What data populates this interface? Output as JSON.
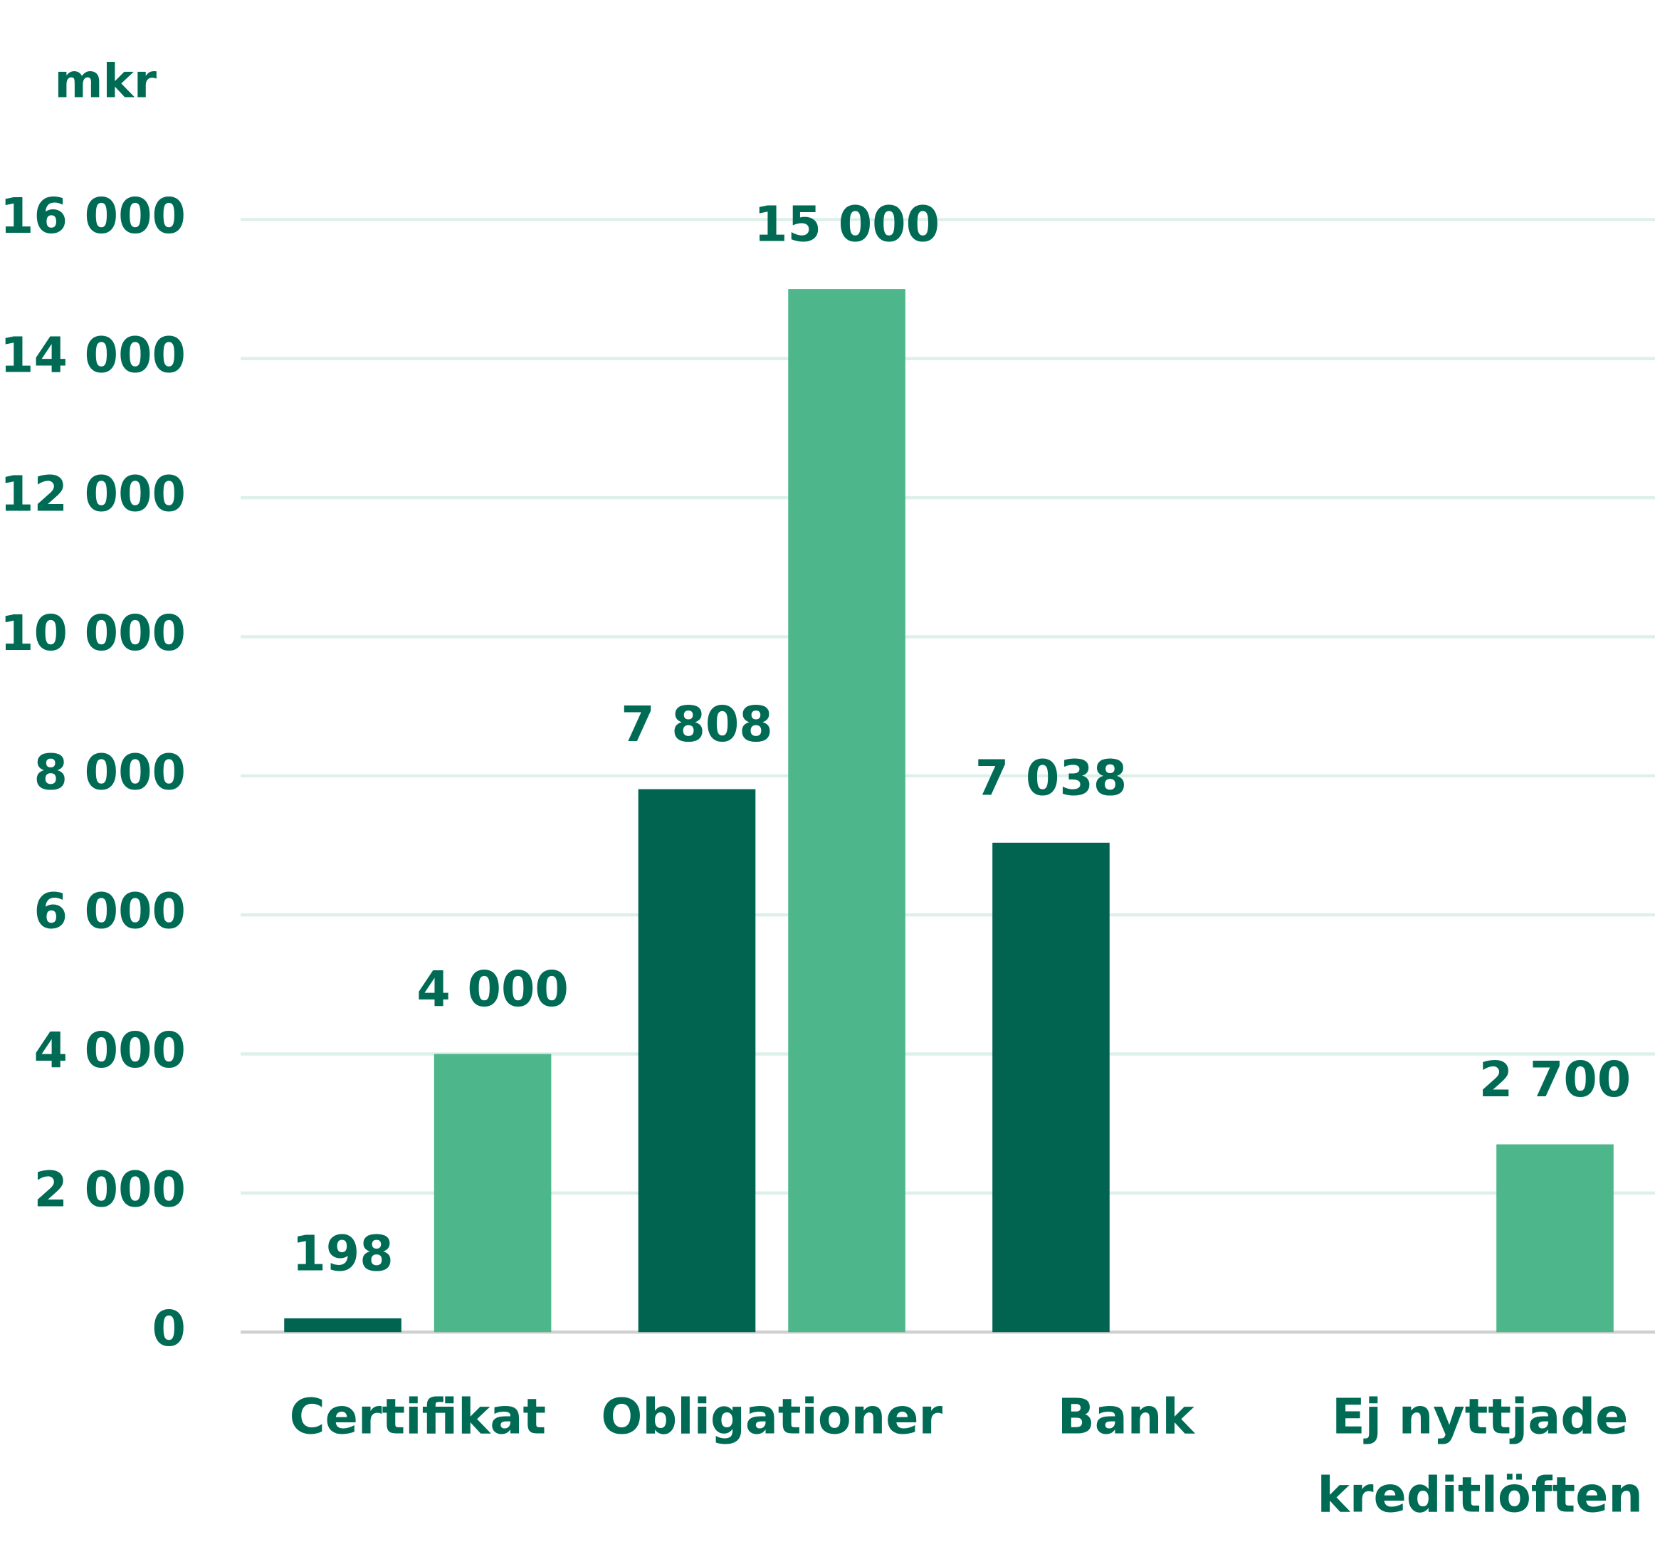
{
  "chart_data": {
    "type": "bar",
    "y_axis_label": "mkr",
    "categories": [
      "Certifikat",
      "Obligationer",
      "Bank",
      "Ej nyttjade kreditlöften"
    ],
    "series": [
      {
        "color": "#006451",
        "values": [
          198,
          7808,
          7038,
          null
        ],
        "value_labels": [
          "198",
          "7 808",
          "7 038",
          null
        ]
      },
      {
        "color": "#4eb68b",
        "values": [
          4000,
          15000,
          null,
          2700
        ],
        "value_labels": [
          "4 000",
          "15 000",
          null,
          "2 700"
        ]
      }
    ],
    "ylim": [
      0,
      16000
    ],
    "yticks": [
      0,
      {
        "value": 2000,
        "label": "2 000"
      },
      {
        "value": 4000,
        "label": "4 000"
      },
      {
        "value": 6000,
        "label": "6 000"
      },
      {
        "value": 8000,
        "label": "8 000"
      },
      {
        "value": 10000,
        "label": "10 000"
      },
      {
        "value": 12000,
        "label": "12 000"
      },
      {
        "value": 14000,
        "label": "14 000"
      },
      {
        "value": 16000,
        "label": "16 000"
      }
    ],
    "grid": true
  }
}
